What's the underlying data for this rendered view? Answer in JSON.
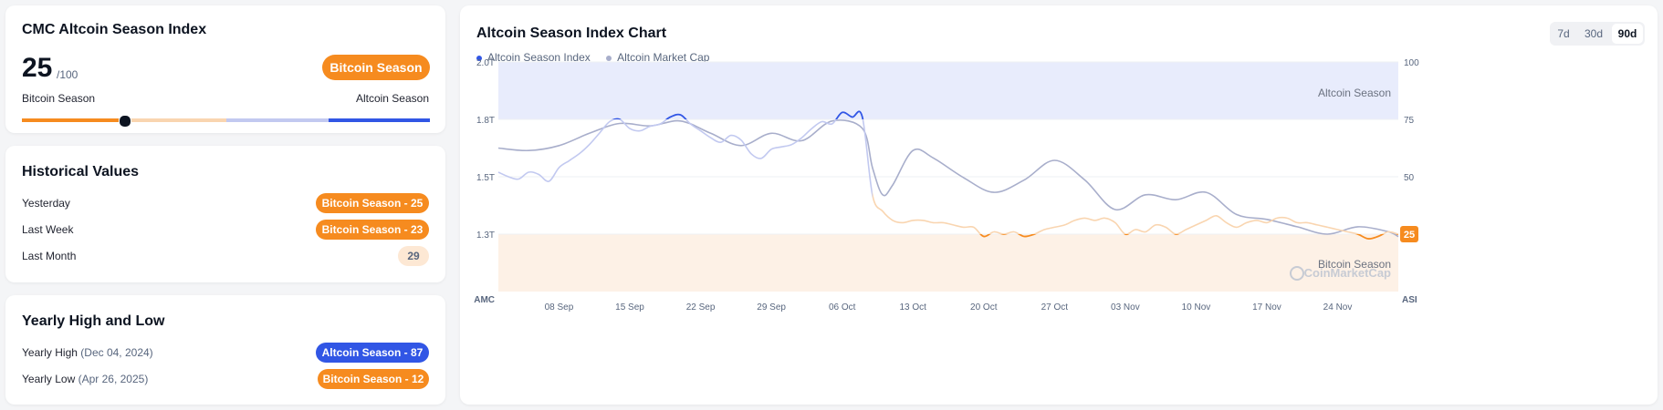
{
  "index_card": {
    "title": "CMC Altcoin Season Index",
    "value": "25",
    "max": "/100",
    "badge": "Bitcoin Season",
    "left_label": "Bitcoin Season",
    "right_label": "Altcoin Season",
    "indicator_value": 25
  },
  "historical": {
    "title": "Historical Values",
    "rows": [
      {
        "label": "Yesterday",
        "value": "Bitcoin Season - 25"
      },
      {
        "label": "Last Week",
        "value": "Bitcoin Season - 23"
      },
      {
        "label": "Last Month",
        "value": "29"
      }
    ]
  },
  "yearly": {
    "title": "Yearly High and Low",
    "high_label": "Yearly High",
    "high_date": "(Dec 04, 2024)",
    "high_value": "Altcoin Season - 87",
    "low_label": "Yearly Low",
    "low_date": "(Apr 26, 2025)",
    "low_value": "Bitcoin Season - 12"
  },
  "chart_card": {
    "title": "Altcoin Season Index Chart",
    "timeframes": [
      "7d",
      "30d",
      "90d"
    ],
    "selected_timeframe": "90d",
    "watermark": "CoinMarketCap"
  },
  "colors": {
    "bitcoin": "#f68b1f",
    "altcoin": "#3156e5",
    "bitcoin_light": "#f9d5b0",
    "altcoin_light": "#c2c9f0",
    "market_cap": "#a8aecb"
  },
  "chart_data": {
    "type": "line",
    "legend": [
      "Altcoin Season Index",
      "Altcoin Market Cap"
    ],
    "left_axis_title": "AMC",
    "right_axis_title": "ASI",
    "left_ticks": [
      "2.0T",
      "1.8T",
      "1.5T",
      "1.3T"
    ],
    "right_ticks": [
      "100",
      "75",
      "50",
      "25"
    ],
    "x_ticks": [
      "08 Sep",
      "15 Sep",
      "22 Sep",
      "29 Sep",
      "06 Oct",
      "13 Oct",
      "20 Oct",
      "27 Oct",
      "03 Nov",
      "10 Nov",
      "17 Nov",
      "24 Nov"
    ],
    "x_range": [
      "2025-09-02",
      "2025-11-30"
    ],
    "right_ylim": [
      0,
      100
    ],
    "zones": [
      {
        "label": "Altcoin Season",
        "from": 75,
        "to": 100
      },
      {
        "label": "Bitcoin Season",
        "from": 0,
        "to": 25
      }
    ],
    "current_value_label": "25",
    "series": [
      {
        "name": "Altcoin Season Index",
        "axis": "right",
        "x": [
          "2025-09-02",
          "2025-09-03",
          "2025-09-04",
          "2025-09-05",
          "2025-09-06",
          "2025-09-07",
          "2025-09-08",
          "2025-09-09",
          "2025-09-10",
          "2025-09-11",
          "2025-09-12",
          "2025-09-13",
          "2025-09-14",
          "2025-09-15",
          "2025-09-16",
          "2025-09-17",
          "2025-09-18",
          "2025-09-19",
          "2025-09-20",
          "2025-09-21",
          "2025-09-22",
          "2025-09-23",
          "2025-09-24",
          "2025-09-25",
          "2025-09-26",
          "2025-09-27",
          "2025-09-28",
          "2025-09-29",
          "2025-09-30",
          "2025-10-01",
          "2025-10-02",
          "2025-10-03",
          "2025-10-04",
          "2025-10-05",
          "2025-10-06",
          "2025-10-07",
          "2025-10-08",
          "2025-10-09",
          "2025-10-10",
          "2025-10-11",
          "2025-10-12",
          "2025-10-13",
          "2025-10-14",
          "2025-10-15",
          "2025-10-16",
          "2025-10-17",
          "2025-10-18",
          "2025-10-19",
          "2025-10-20",
          "2025-10-21",
          "2025-10-22",
          "2025-10-23",
          "2025-10-24",
          "2025-10-25",
          "2025-10-26",
          "2025-10-27",
          "2025-10-28",
          "2025-10-29",
          "2025-10-30",
          "2025-10-31",
          "2025-11-01",
          "2025-11-02",
          "2025-11-03",
          "2025-11-04",
          "2025-11-05",
          "2025-11-06",
          "2025-11-07",
          "2025-11-08",
          "2025-11-09",
          "2025-11-10",
          "2025-11-11",
          "2025-11-12",
          "2025-11-13",
          "2025-11-14",
          "2025-11-15",
          "2025-11-16",
          "2025-11-17",
          "2025-11-18",
          "2025-11-19",
          "2025-11-20",
          "2025-11-21",
          "2025-11-22",
          "2025-11-23",
          "2025-11-24",
          "2025-11-25",
          "2025-11-26",
          "2025-11-27",
          "2025-11-28",
          "2025-11-29",
          "2025-11-30"
        ],
        "values": [
          52,
          50,
          49,
          52,
          51,
          48,
          54,
          57,
          60,
          64,
          69,
          74,
          75,
          71,
          70,
          72,
          73,
          76,
          77,
          73,
          70,
          67,
          65,
          68,
          66,
          60,
          58,
          62,
          63,
          64,
          67,
          71,
          74,
          73,
          78,
          76,
          76,
          42,
          35,
          31,
          30,
          31,
          31,
          30,
          30,
          29,
          28,
          28,
          24,
          26,
          25,
          26,
          24,
          25,
          27,
          28,
          29,
          31,
          32,
          31,
          32,
          30,
          25,
          27,
          26,
          29,
          28,
          25,
          27,
          29,
          31,
          33,
          30,
          28,
          30,
          31,
          30,
          32,
          32,
          30,
          30,
          29,
          28,
          27,
          26,
          25,
          23,
          24,
          26,
          25
        ]
      },
      {
        "name": "Altcoin Market Cap",
        "axis": "left",
        "x": [
          "2025-09-02",
          "2025-09-05",
          "2025-09-08",
          "2025-09-11",
          "2025-09-14",
          "2025-09-17",
          "2025-09-20",
          "2025-09-23",
          "2025-09-26",
          "2025-09-29",
          "2025-10-02",
          "2025-10-05",
          "2025-10-08",
          "2025-10-09",
          "2025-10-10",
          "2025-10-11",
          "2025-10-13",
          "2025-10-15",
          "2025-10-18",
          "2025-10-21",
          "2025-10-24",
          "2025-10-27",
          "2025-10-30",
          "2025-11-02",
          "2025-11-05",
          "2025-11-08",
          "2025-11-11",
          "2025-11-14",
          "2025-11-17",
          "2025-11-20",
          "2025-11-23",
          "2025-11-26",
          "2025-11-29",
          "2025-11-30"
        ],
        "values": [
          1.65,
          1.64,
          1.66,
          1.71,
          1.75,
          1.74,
          1.76,
          1.71,
          1.66,
          1.71,
          1.68,
          1.76,
          1.73,
          1.57,
          1.46,
          1.5,
          1.64,
          1.61,
          1.53,
          1.47,
          1.52,
          1.6,
          1.52,
          1.4,
          1.46,
          1.44,
          1.47,
          1.38,
          1.36,
          1.33,
          1.3,
          1.33,
          1.31,
          1.29
        ]
      }
    ]
  }
}
